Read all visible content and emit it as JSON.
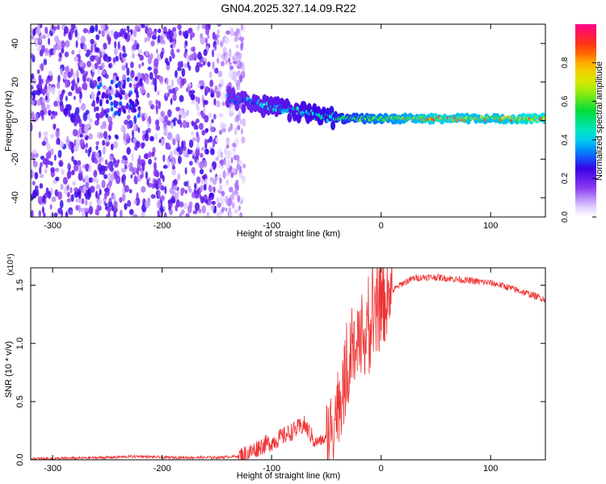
{
  "title": "GN04.2025.327.14.09.R22",
  "chart_data": [
    {
      "type": "heatmap",
      "title": "GN04.2025.327.14.09.R22",
      "xlabel": "Height of straight line (km)",
      "ylabel": "Frequency (Hz)",
      "xlim": [
        -320,
        150
      ],
      "ylim": [
        -50,
        50
      ],
      "xticks": [
        -300,
        -200,
        -100,
        0,
        100
      ],
      "yticks": [
        -40,
        -20,
        0,
        20,
        40
      ],
      "colorbar": {
        "label": "Normalized spectral amplitude",
        "range": [
          0,
          1
        ],
        "ticks": [
          0.0,
          0.2,
          0.4,
          0.6,
          0.8
        ]
      },
      "features": [
        {
          "name": "noise",
          "x_range": [
            -320,
            -135
          ],
          "y_range": [
            -50,
            50
          ],
          "amplitude": 0.15
        },
        {
          "name": "blob",
          "x": -240,
          "y": 12,
          "amplitude": 0.3
        },
        {
          "name": "ridge",
          "points": [
            [
              -140,
              12
            ],
            [
              -110,
              8
            ],
            [
              -80,
              5
            ],
            [
              -60,
              3
            ],
            [
              -40,
              1
            ],
            [
              0,
              1
            ],
            [
              50,
              1
            ],
            [
              100,
              1
            ],
            [
              150,
              1
            ]
          ],
          "amplitude": [
            0.4,
            0.45,
            0.5,
            0.55,
            0.6,
            0.75,
            0.9,
            0.85,
            0.95
          ]
        }
      ]
    },
    {
      "type": "line",
      "xlabel": "Height of straight line (km)",
      "ylabel": "SNR (10 * v/v)",
      "y_multiplier": "(x10⁴)",
      "xlim": [
        -320,
        150
      ],
      "ylim": [
        0,
        1.65
      ],
      "xticks": [
        -300,
        -200,
        -100,
        0,
        100
      ],
      "yticks": [
        0.0,
        0.5,
        1.0,
        1.5
      ],
      "color": "#ee3333",
      "series": [
        {
          "x": [
            -320,
            -300,
            -250,
            -220,
            -200,
            -150,
            -130,
            -120,
            -110,
            -100,
            -90,
            -80,
            -70,
            -60,
            -50,
            -45,
            -40,
            -35,
            -30,
            -25,
            -20,
            -15,
            -10,
            -5,
            0,
            10,
            20,
            30,
            40,
            50,
            60,
            70,
            80,
            90,
            100,
            110,
            120,
            130,
            140,
            150
          ],
          "y": [
            0.01,
            0.01,
            0.02,
            0.03,
            0.02,
            0.02,
            0.03,
            0.06,
            0.12,
            0.15,
            0.2,
            0.25,
            0.3,
            0.15,
            0.18,
            0.3,
            0.45,
            0.6,
            0.8,
            0.9,
            0.95,
            1.0,
            1.1,
            1.2,
            1.3,
            1.45,
            1.52,
            1.56,
            1.57,
            1.57,
            1.56,
            1.55,
            1.54,
            1.53,
            1.52,
            1.5,
            1.47,
            1.44,
            1.41,
            1.38
          ]
        }
      ]
    }
  ]
}
